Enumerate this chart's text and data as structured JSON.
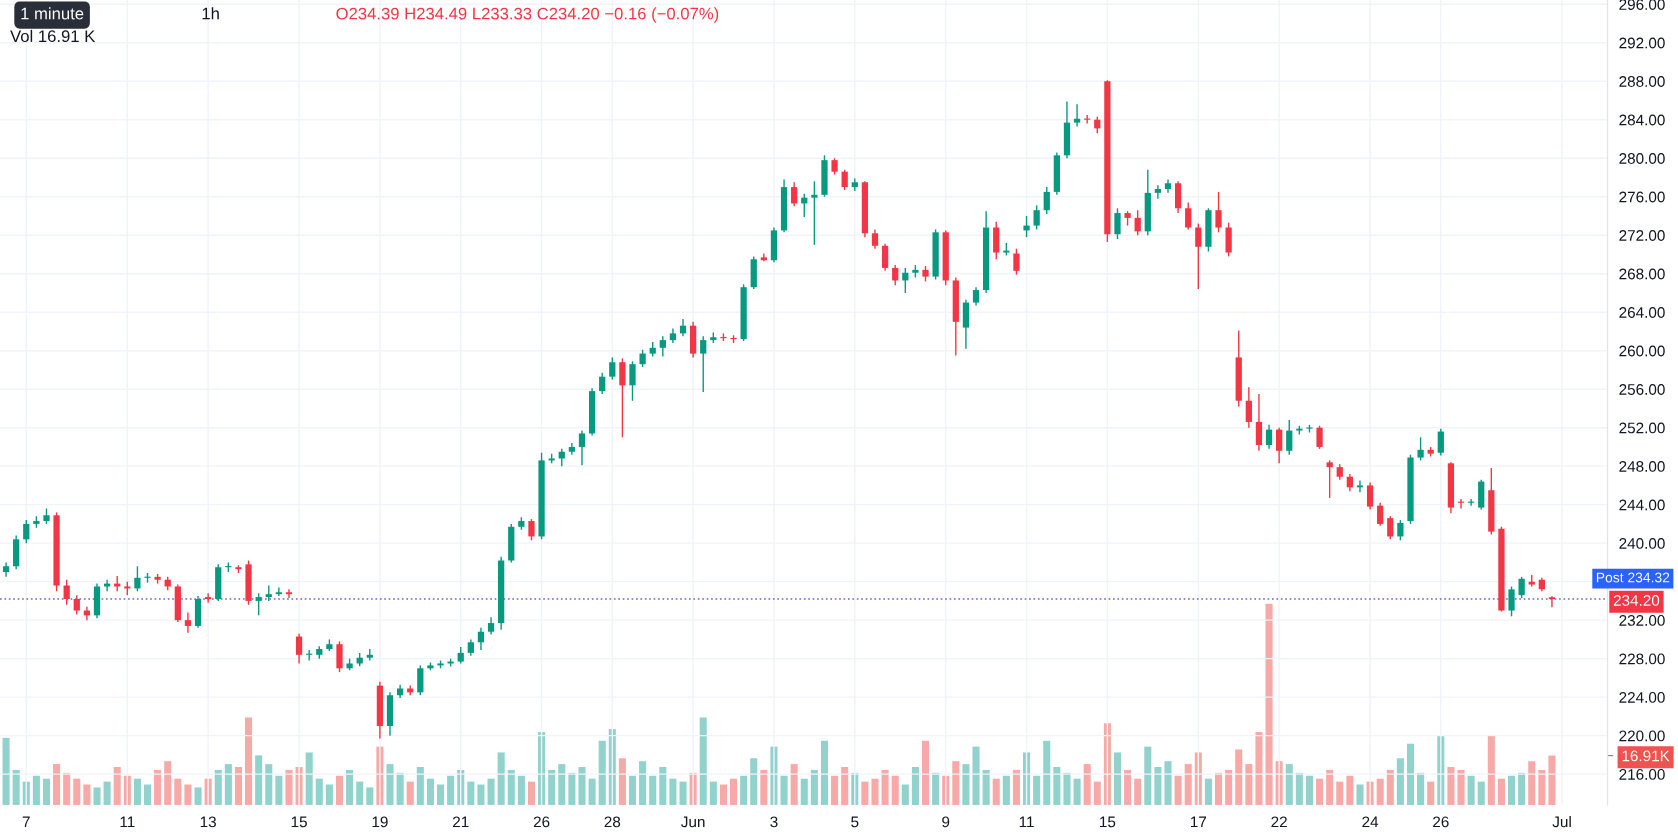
{
  "chart_data": {
    "type": "candlestick",
    "categories": [
      null,
      null,
      "7",
      null,
      null,
      null,
      null,
      null,
      null,
      null,
      null,
      null,
      "11",
      null,
      null,
      null,
      null,
      null,
      null,
      null,
      "13",
      null,
      null,
      null,
      null,
      null,
      null,
      null,
      null,
      "15",
      null,
      null,
      null,
      null,
      null,
      null,
      null,
      "19",
      null,
      null,
      null,
      null,
      null,
      null,
      null,
      "21",
      null,
      null,
      null,
      null,
      null,
      null,
      null,
      "26",
      null,
      null,
      null,
      null,
      null,
      null,
      "28",
      null,
      null,
      null,
      null,
      null,
      null,
      null,
      "Jun",
      null,
      null,
      null,
      null,
      null,
      null,
      null,
      "3",
      null,
      null,
      null,
      null,
      null,
      null,
      null,
      "5",
      null,
      null,
      null,
      null,
      null,
      null,
      null,
      null,
      "9",
      null,
      null,
      null,
      null,
      null,
      null,
      null,
      "11",
      null,
      null,
      null,
      null,
      null,
      null,
      null,
      "15",
      null,
      null,
      null,
      null,
      null,
      null,
      null,
      null,
      "17",
      null,
      null,
      null,
      null,
      null,
      null,
      null,
      "22",
      null,
      null,
      null,
      null,
      null,
      null,
      null,
      null,
      "24",
      null,
      null,
      null,
      null,
      null,
      null,
      "26",
      null,
      null,
      null,
      null,
      null,
      null,
      null,
      null,
      null,
      null,
      null,
      "Jul",
      null,
      null,
      null,
      null
    ],
    "series": [
      {
        "colors": [
          "#089981",
          "#089981",
          "#089981",
          "#089981",
          "#089981",
          "#f23645",
          "#f23645",
          "#f23645",
          "#f23645",
          "#089981",
          "#089981",
          "#f23645",
          "#f23645",
          "#089981",
          "#089981",
          "#f23645",
          "#f23645",
          "#f23645",
          "#f23645",
          "#089981",
          "#f23645",
          "#089981",
          "#089981",
          "#f23645",
          "#f23645",
          "#089981",
          "#089981",
          "#089981",
          "#f23645",
          "#f23645",
          "#089981",
          "#089981",
          "#089981",
          "#f23645",
          "#089981",
          "#089981",
          "#089981",
          "#f23645",
          "#089981",
          "#089981",
          "#f23645",
          "#089981",
          "#089981",
          "#089981",
          "#089981",
          "#089981",
          "#089981",
          "#089981",
          "#089981",
          "#089981",
          "#089981",
          "#089981",
          "#f23645",
          "#089981",
          "#089981",
          "#089981",
          "#089981",
          "#089981",
          "#089981",
          "#089981",
          "#089981",
          "#f23645",
          "#089981",
          "#089981",
          "#089981",
          "#089981",
          "#089981",
          "#089981",
          "#f23645",
          "#089981",
          "#089981",
          "#f23645",
          "#f23645",
          "#089981",
          "#089981",
          "#f23645",
          "#089981",
          "#089981",
          "#f23645",
          "#089981",
          "#089981",
          "#089981",
          "#f23645",
          "#f23645",
          "#089981",
          "#f23645",
          "#f23645",
          "#f23645",
          "#f23645",
          "#089981",
          "#089981",
          "#f23645",
          "#089981",
          "#f23645",
          "#f23645",
          "#089981",
          "#089981",
          "#089981",
          "#f23645",
          "#089981",
          "#f23645",
          "#089981",
          "#089981",
          "#089981",
          "#089981",
          "#089981",
          "#089981",
          "#f23645",
          "#f23645",
          "#f23645",
          "#089981",
          "#f23645",
          "#f23645",
          "#089981",
          "#089981",
          "#089981",
          "#f23645",
          "#f23645",
          "#f23645",
          "#089981",
          "#f23645",
          "#f23645",
          "#f23645",
          "#f23645",
          "#f23645",
          "#089981",
          "#f23645",
          "#089981",
          "#089981",
          "#089981",
          "#f23645",
          "#f23645",
          "#f23645",
          "#f23645",
          "#089981",
          "#f23645",
          "#f23645",
          "#f23645",
          "#089981",
          "#089981",
          "#089981",
          "#f23645",
          "#089981",
          "#f23645",
          "#f23645",
          "#089981",
          "#089981",
          "#f23645",
          "#f23645",
          "#089981",
          "#089981",
          "#f23645",
          "#f23645",
          "#f23645",
          null,
          null,
          null,
          null,
          null
        ],
        "ohlc": [
          [
            237.0,
            238.0,
            236.5,
            237.6
          ],
          [
            237.6,
            240.8,
            237.3,
            240.4
          ],
          [
            240.4,
            242.4,
            240.0,
            242.0
          ],
          [
            242.0,
            242.8,
            241.6,
            242.3
          ],
          [
            242.3,
            243.6,
            242.0,
            242.9
          ],
          [
            242.9,
            243.2,
            235.0,
            235.6
          ],
          [
            235.6,
            236.2,
            233.6,
            234.2
          ],
          [
            234.2,
            234.6,
            232.6,
            233.0
          ],
          [
            233.0,
            233.4,
            232.0,
            232.5
          ],
          [
            232.5,
            235.8,
            232.2,
            235.5
          ],
          [
            235.5,
            236.2,
            235.0,
            235.8
          ],
          [
            235.8,
            236.6,
            235.0,
            235.5
          ],
          [
            235.5,
            236.0,
            234.6,
            235.3
          ],
          [
            235.3,
            237.6,
            235.0,
            236.4
          ],
          [
            236.4,
            236.9,
            235.9,
            236.5
          ],
          [
            236.5,
            236.8,
            235.8,
            236.2
          ],
          [
            236.2,
            236.5,
            235.1,
            235.5
          ],
          [
            235.5,
            235.7,
            231.8,
            232.0
          ],
          [
            232.0,
            232.8,
            230.7,
            231.4
          ],
          [
            231.4,
            234.5,
            231.2,
            234.2
          ],
          [
            234.4,
            234.8,
            233.8,
            234.2
          ],
          [
            234.2,
            237.8,
            234.0,
            237.5
          ],
          [
            237.5,
            238.0,
            237.0,
            237.5
          ],
          [
            237.5,
            237.7,
            236.9,
            237.3
          ],
          [
            237.8,
            238.2,
            233.6,
            234.0
          ],
          [
            234.0,
            234.8,
            232.5,
            234.4
          ],
          [
            234.4,
            235.6,
            234.0,
            234.7
          ],
          [
            234.7,
            235.4,
            234.5,
            234.9
          ],
          [
            234.9,
            235.2,
            234.3,
            234.7
          ],
          [
            230.3,
            230.6,
            227.5,
            228.4
          ],
          [
            228.4,
            228.9,
            227.8,
            228.4
          ],
          [
            228.4,
            229.3,
            228.0,
            229.0
          ],
          [
            229.0,
            230.0,
            228.8,
            229.5
          ],
          [
            229.5,
            229.8,
            226.6,
            227.0
          ],
          [
            227.0,
            228.0,
            226.8,
            227.5
          ],
          [
            227.5,
            228.6,
            227.2,
            228.1
          ],
          [
            228.1,
            229.0,
            227.8,
            228.4
          ],
          [
            225.2,
            225.6,
            219.7,
            221.0
          ],
          [
            221.0,
            224.5,
            220.0,
            224.2
          ],
          [
            224.2,
            225.3,
            223.9,
            224.9
          ],
          [
            224.9,
            225.2,
            224.2,
            224.5
          ],
          [
            224.5,
            227.3,
            224.2,
            227.0
          ],
          [
            227.0,
            227.6,
            226.8,
            227.3
          ],
          [
            227.3,
            227.8,
            227.0,
            227.5
          ],
          [
            227.5,
            228.0,
            227.2,
            227.7
          ],
          [
            227.7,
            229.2,
            227.5,
            228.6
          ],
          [
            228.6,
            230.0,
            228.3,
            229.7
          ],
          [
            229.7,
            231.2,
            228.9,
            230.8
          ],
          [
            230.8,
            232.3,
            230.5,
            231.7
          ],
          [
            231.7,
            238.6,
            231.0,
            238.2
          ],
          [
            238.2,
            242.0,
            238.0,
            241.7
          ],
          [
            241.7,
            242.7,
            241.4,
            242.3
          ],
          [
            242.3,
            242.5,
            240.3,
            240.7
          ],
          [
            240.7,
            249.4,
            240.4,
            248.6
          ],
          [
            248.6,
            249.3,
            248.3,
            248.8
          ],
          [
            248.8,
            249.8,
            248.0,
            249.5
          ],
          [
            249.5,
            250.4,
            249.2,
            250.0
          ],
          [
            250.0,
            251.7,
            248.1,
            251.4
          ],
          [
            251.4,
            256.1,
            251.2,
            255.8
          ],
          [
            255.8,
            257.7,
            255.5,
            257.3
          ],
          [
            257.3,
            259.3,
            257.0,
            258.8
          ],
          [
            258.8,
            259.2,
            251.0,
            256.4
          ],
          [
            256.4,
            258.9,
            254.8,
            258.6
          ],
          [
            258.6,
            260.1,
            258.3,
            259.7
          ],
          [
            259.7,
            260.9,
            259.4,
            260.3
          ],
          [
            260.3,
            261.5,
            259.4,
            261.1
          ],
          [
            261.1,
            262.3,
            260.8,
            261.8
          ],
          [
            261.8,
            263.3,
            261.5,
            262.6
          ],
          [
            262.6,
            263.0,
            259.3,
            259.7
          ],
          [
            259.7,
            261.5,
            255.7,
            261.1
          ],
          [
            261.1,
            261.9,
            260.8,
            261.4
          ],
          [
            261.4,
            261.8,
            261.0,
            261.3
          ],
          [
            261.3,
            261.6,
            260.8,
            261.2
          ],
          [
            261.2,
            266.9,
            261.0,
            266.6
          ],
          [
            266.6,
            269.8,
            266.4,
            269.5
          ],
          [
            269.7,
            270.1,
            269.3,
            269.4
          ],
          [
            269.4,
            272.8,
            269.2,
            272.5
          ],
          [
            272.5,
            277.8,
            272.3,
            277.0
          ],
          [
            277.0,
            277.5,
            275.0,
            275.3
          ],
          [
            275.3,
            276.3,
            273.9,
            275.9
          ],
          [
            275.9,
            277.6,
            271.0,
            276.2
          ],
          [
            276.2,
            280.3,
            276.0,
            279.8
          ],
          [
            279.8,
            280.0,
            278.3,
            278.6
          ],
          [
            278.6,
            278.8,
            276.7,
            277.0
          ],
          [
            277.0,
            277.9,
            276.6,
            277.5
          ],
          [
            277.5,
            277.6,
            271.8,
            272.2
          ],
          [
            272.2,
            272.6,
            270.6,
            270.9
          ],
          [
            270.9,
            271.1,
            268.3,
            268.6
          ],
          [
            268.6,
            268.9,
            266.8,
            267.3
          ],
          [
            267.3,
            268.6,
            266.0,
            268.1
          ],
          [
            268.1,
            268.9,
            267.6,
            268.4
          ],
          [
            268.4,
            268.8,
            267.2,
            267.7
          ],
          [
            267.7,
            272.6,
            267.4,
            272.3
          ],
          [
            272.3,
            272.5,
            266.8,
            267.3
          ],
          [
            267.3,
            267.6,
            259.5,
            263.0
          ],
          [
            262.4,
            265.3,
            260.2,
            265.0
          ],
          [
            265.0,
            266.6,
            264.7,
            266.3
          ],
          [
            266.3,
            274.5,
            266.0,
            272.8
          ],
          [
            272.8,
            273.4,
            269.5,
            270.2
          ],
          [
            270.2,
            271.2,
            269.9,
            270.4
          ],
          [
            270.1,
            270.6,
            267.9,
            268.3
          ],
          [
            272.5,
            274.0,
            271.8,
            273.0
          ],
          [
            273.0,
            275.1,
            272.6,
            274.6
          ],
          [
            274.6,
            277.0,
            274.2,
            276.5
          ],
          [
            276.5,
            280.6,
            276.2,
            280.3
          ],
          [
            280.3,
            285.9,
            280.0,
            283.7
          ],
          [
            283.7,
            285.6,
            283.3,
            284.1
          ],
          [
            284.1,
            284.5,
            283.6,
            284.0
          ],
          [
            284.0,
            284.3,
            282.6,
            283.1
          ],
          [
            288.0,
            288.1,
            271.3,
            272.1
          ],
          [
            272.1,
            274.8,
            271.6,
            274.3
          ],
          [
            274.3,
            274.5,
            273.0,
            273.8
          ],
          [
            273.8,
            274.6,
            272.0,
            272.4
          ],
          [
            272.4,
            278.8,
            272.0,
            276.4
          ],
          [
            276.4,
            277.2,
            275.8,
            276.8
          ],
          [
            276.8,
            277.8,
            276.4,
            277.4
          ],
          [
            277.4,
            277.6,
            274.3,
            274.8
          ],
          [
            274.8,
            275.4,
            272.6,
            272.8
          ],
          [
            272.8,
            273.2,
            266.4,
            270.8
          ],
          [
            270.8,
            274.8,
            270.3,
            274.6
          ],
          [
            274.6,
            276.5,
            272.3,
            272.8
          ],
          [
            272.8,
            273.3,
            269.8,
            270.2
          ],
          [
            259.3,
            262.1,
            254.2,
            254.8
          ],
          [
            254.8,
            256.2,
            252.0,
            252.6
          ],
          [
            252.6,
            255.5,
            249.6,
            250.2
          ],
          [
            250.2,
            252.3,
            249.8,
            251.8
          ],
          [
            251.8,
            252.0,
            248.3,
            249.6
          ],
          [
            249.6,
            252.8,
            249.2,
            251.7
          ],
          [
            251.7,
            252.2,
            251.3,
            251.9
          ],
          [
            251.9,
            252.3,
            251.5,
            252.0
          ],
          [
            252.0,
            252.2,
            249.8,
            250.0
          ],
          [
            248.4,
            248.6,
            244.7,
            247.9
          ],
          [
            247.9,
            248.2,
            246.6,
            246.9
          ],
          [
            246.9,
            247.2,
            245.4,
            245.8
          ],
          [
            245.8,
            246.5,
            245.3,
            246.0
          ],
          [
            246.0,
            246.3,
            243.5,
            243.8
          ],
          [
            243.9,
            244.2,
            241.8,
            242.0
          ],
          [
            242.6,
            242.8,
            240.4,
            240.7
          ],
          [
            240.7,
            242.4,
            240.3,
            242.1
          ],
          [
            242.3,
            249.2,
            242.0,
            248.9
          ],
          [
            248.9,
            251.0,
            248.6,
            249.7
          ],
          [
            249.7,
            250.0,
            249.0,
            249.3
          ],
          [
            249.4,
            251.9,
            249.1,
            251.6
          ],
          [
            248.3,
            248.4,
            243.1,
            243.7
          ],
          [
            244.3,
            244.6,
            243.6,
            244.2
          ],
          [
            244.2,
            244.6,
            243.9,
            244.3
          ],
          [
            243.7,
            246.6,
            243.5,
            246.4
          ],
          [
            245.5,
            247.8,
            240.9,
            241.2
          ],
          [
            241.5,
            241.7,
            232.9,
            233.0
          ],
          [
            233.0,
            235.5,
            232.4,
            235.2
          ],
          [
            234.6,
            236.5,
            234.3,
            236.3
          ],
          [
            236.0,
            236.7,
            235.5,
            235.7
          ],
          [
            236.2,
            236.4,
            235.0,
            235.2
          ],
          [
            234.39,
            234.49,
            233.33,
            234.2
          ],
          null,
          null,
          null,
          null,
          null
        ]
      },
      {
        "type": "bar",
        "axis": "y2",
        "colors": [
          "#92d2cc",
          "#92d2cc",
          "#92d2cc",
          "#92d2cc",
          "#92d2cc",
          "#f7a9a7",
          "#f7a9a7",
          "#f7a9a7",
          "#f7a9a7",
          "#92d2cc",
          "#92d2cc",
          "#f7a9a7",
          "#f7a9a7",
          "#92d2cc",
          "#92d2cc",
          "#f7a9a7",
          "#f7a9a7",
          "#f7a9a7",
          "#f7a9a7",
          "#92d2cc",
          "#f7a9a7",
          "#92d2cc",
          "#92d2cc",
          "#f7a9a7",
          "#f7a9a7",
          "#92d2cc",
          "#92d2cc",
          "#92d2cc",
          "#f7a9a7",
          "#f7a9a7",
          "#92d2cc",
          "#92d2cc",
          "#92d2cc",
          "#f7a9a7",
          "#92d2cc",
          "#92d2cc",
          "#92d2cc",
          "#f7a9a7",
          "#92d2cc",
          "#92d2cc",
          "#f7a9a7",
          "#92d2cc",
          "#92d2cc",
          "#92d2cc",
          "#92d2cc",
          "#92d2cc",
          "#92d2cc",
          "#92d2cc",
          "#92d2cc",
          "#92d2cc",
          "#92d2cc",
          "#92d2cc",
          "#f7a9a7",
          "#92d2cc",
          "#92d2cc",
          "#92d2cc",
          "#92d2cc",
          "#92d2cc",
          "#92d2cc",
          "#92d2cc",
          "#92d2cc",
          "#f7a9a7",
          "#92d2cc",
          "#92d2cc",
          "#92d2cc",
          "#92d2cc",
          "#92d2cc",
          "#92d2cc",
          "#f7a9a7",
          "#92d2cc",
          "#92d2cc",
          "#f7a9a7",
          "#f7a9a7",
          "#92d2cc",
          "#92d2cc",
          "#f7a9a7",
          "#92d2cc",
          "#92d2cc",
          "#f7a9a7",
          "#92d2cc",
          "#92d2cc",
          "#92d2cc",
          "#f7a9a7",
          "#f7a9a7",
          "#92d2cc",
          "#f7a9a7",
          "#f7a9a7",
          "#f7a9a7",
          "#f7a9a7",
          "#92d2cc",
          "#92d2cc",
          "#f7a9a7",
          "#92d2cc",
          "#f7a9a7",
          "#f7a9a7",
          "#92d2cc",
          "#92d2cc",
          "#92d2cc",
          "#f7a9a7",
          "#92d2cc",
          "#f7a9a7",
          "#92d2cc",
          "#92d2cc",
          "#92d2cc",
          "#92d2cc",
          "#92d2cc",
          "#92d2cc",
          "#f7a9a7",
          "#f7a9a7",
          "#f7a9a7",
          "#92d2cc",
          "#f7a9a7",
          "#f7a9a7",
          "#92d2cc",
          "#92d2cc",
          "#92d2cc",
          "#f7a9a7",
          "#f7a9a7",
          "#f7a9a7",
          "#92d2cc",
          "#f7a9a7",
          "#f7a9a7",
          "#f7a9a7",
          "#f7a9a7",
          "#f7a9a7",
          "#f7a9a7",
          "#f7a9a7",
          "#92d2cc",
          "#92d2cc",
          "#92d2cc",
          "#f7a9a7",
          "#f7a9a7",
          "#f7a9a7",
          "#f7a9a7",
          "#92d2cc",
          "#f7a9a7",
          "#f7a9a7",
          "#f7a9a7",
          "#92d2cc",
          "#92d2cc",
          "#92d2cc",
          "#f7a9a7",
          "#92d2cc",
          "#f7a9a7",
          "#f7a9a7",
          "#92d2cc",
          "#92d2cc",
          "#f7a9a7",
          "#f7a9a7",
          "#92d2cc",
          "#92d2cc",
          "#f7a9a7",
          "#f7a9a7",
          "#f7a9a7",
          null,
          null,
          null,
          null,
          null
        ],
        "values": [
          23,
          12,
          8,
          10,
          9,
          14,
          11,
          9,
          7,
          6,
          8,
          13,
          10,
          9,
          7,
          12,
          15,
          9,
          7,
          6,
          9,
          12,
          14,
          13,
          30,
          17,
          14,
          10,
          12,
          13,
          18,
          9,
          7,
          10,
          12,
          8,
          6,
          20,
          14,
          11,
          8,
          13,
          9,
          7,
          10,
          12,
          8,
          7,
          9,
          18,
          12,
          10,
          8,
          25,
          12,
          14,
          11,
          13,
          9,
          22,
          26,
          16,
          10,
          15,
          10,
          13,
          9,
          8,
          11,
          30,
          8,
          7,
          9,
          10,
          16,
          12,
          20,
          10,
          14,
          9,
          12,
          22,
          10,
          13,
          11,
          8,
          9,
          12,
          10,
          7,
          13,
          22,
          11,
          10,
          15,
          14,
          20,
          12,
          9,
          10,
          12,
          18,
          10,
          22,
          13,
          11,
          9,
          14,
          8,
          28,
          18,
          12,
          9,
          20,
          13,
          15,
          10,
          14,
          18,
          9,
          11,
          12,
          19,
          14,
          25,
          69,
          15,
          14,
          11,
          10,
          9,
          12,
          8,
          10,
          7,
          8,
          9,
          12,
          16,
          21,
          11,
          8,
          24,
          13,
          12,
          10,
          8,
          24,
          9,
          10,
          11,
          15,
          12,
          16.91,
          null,
          null,
          null,
          null,
          null
        ]
      }
    ],
    "ylim": [
      212.8,
      296.44
    ],
    "yticks": [
      {
        "value": 216,
        "label": "216.00"
      },
      {
        "value": 220,
        "label": "220.00"
      },
      {
        "value": 224,
        "label": "224.00"
      },
      {
        "value": 228,
        "label": "228.00"
      },
      {
        "value": 232,
        "label": "232.00"
      },
      {
        "value": 236,
        "label": null
      },
      {
        "value": 240,
        "label": "240.00"
      },
      {
        "value": 244,
        "label": "244.00"
      },
      {
        "value": 248,
        "label": "248.00"
      },
      {
        "value": 252,
        "label": "252.00"
      },
      {
        "value": 256,
        "label": "256.00"
      },
      {
        "value": 260,
        "label": "260.00"
      },
      {
        "value": 264,
        "label": "264.00"
      },
      {
        "value": 268,
        "label": "268.00"
      },
      {
        "value": 272,
        "label": "272.00"
      },
      {
        "value": 276,
        "label": "276.00"
      },
      {
        "value": 280,
        "label": "280.00"
      },
      {
        "value": 284,
        "label": "284.00"
      },
      {
        "value": 288,
        "label": "288.00"
      },
      {
        "value": 292,
        "label": "292.00"
      },
      {
        "value": 296,
        "label": "296.00"
      }
    ],
    "y2lim": [
      0,
      276
    ],
    "y2ticks": [
      {
        "value": 16.91,
        "label": "16.91K"
      }
    ],
    "grid": true,
    "ref_lines": [
      {
        "axis": "y",
        "value": 234.2,
        "label": "234.20",
        "color": "#7b5cd6",
        "line_style": "dotted"
      }
    ],
    "annotations": [
      "1 minute",
      "1h",
      "O234.39 H234.49 L233.33 C234.20 −0.16 (−0.07%)",
      "Vol 16.91 K",
      "Post 234.32"
    ]
  }
}
